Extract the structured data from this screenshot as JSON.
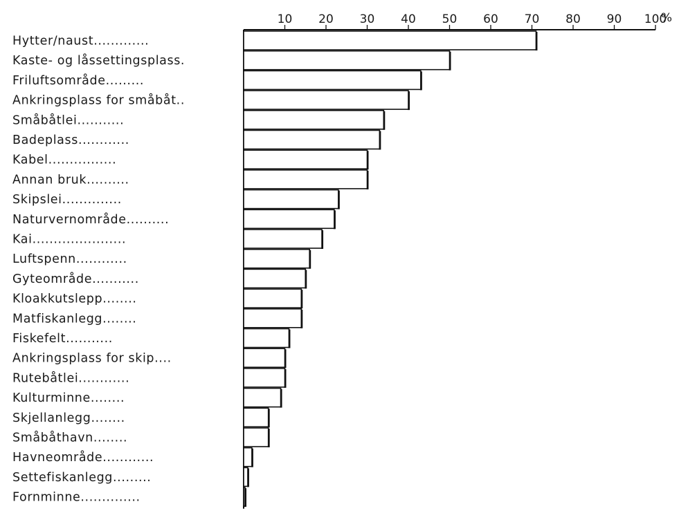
{
  "chart_data": {
    "type": "bar",
    "orientation": "horizontal",
    "unit": "%",
    "xlim": [
      0,
      100
    ],
    "x_ticks": [
      10,
      20,
      30,
      40,
      50,
      60,
      70,
      80,
      90,
      100
    ],
    "x_axis_position": "top",
    "grid": false,
    "legend": "none",
    "categories": [
      "Hytter/naust",
      "Kaste- og låssettingsplass",
      "Friluftsområde",
      "Ankringsplass for småbåt",
      "Småbåtlei",
      "Badeplass",
      "Kabel",
      "Annan bruk",
      "Skipslei",
      "Naturvernområde",
      "Kai",
      "Luftspenn",
      "Gyteområde",
      "Kloakkutslepp",
      "Matfiskanlegg",
      "Fiskefelt",
      "Ankringsplass for skip",
      "Rutebåtlei",
      "Kulturminne",
      "Skjellanlegg",
      "Småbåthavn",
      "Havneområde",
      "Settefiskanlegg",
      "Fornminne"
    ],
    "values": [
      71,
      50,
      43,
      40,
      34,
      33,
      30,
      30,
      23,
      22,
      19,
      16,
      15,
      14,
      14,
      11,
      10,
      10,
      9,
      6,
      6,
      2,
      1,
      0.3
    ],
    "label_leaders": [
      ".............",
      ".",
      ".........",
      "..",
      "...........",
      "............",
      "................",
      "..........",
      "..............",
      "..........",
      "......................",
      "............",
      "...........",
      "........",
      "........",
      "...........",
      "....",
      "............",
      "........",
      "........",
      "........",
      "............",
      ".........",
      ".............."
    ]
  }
}
